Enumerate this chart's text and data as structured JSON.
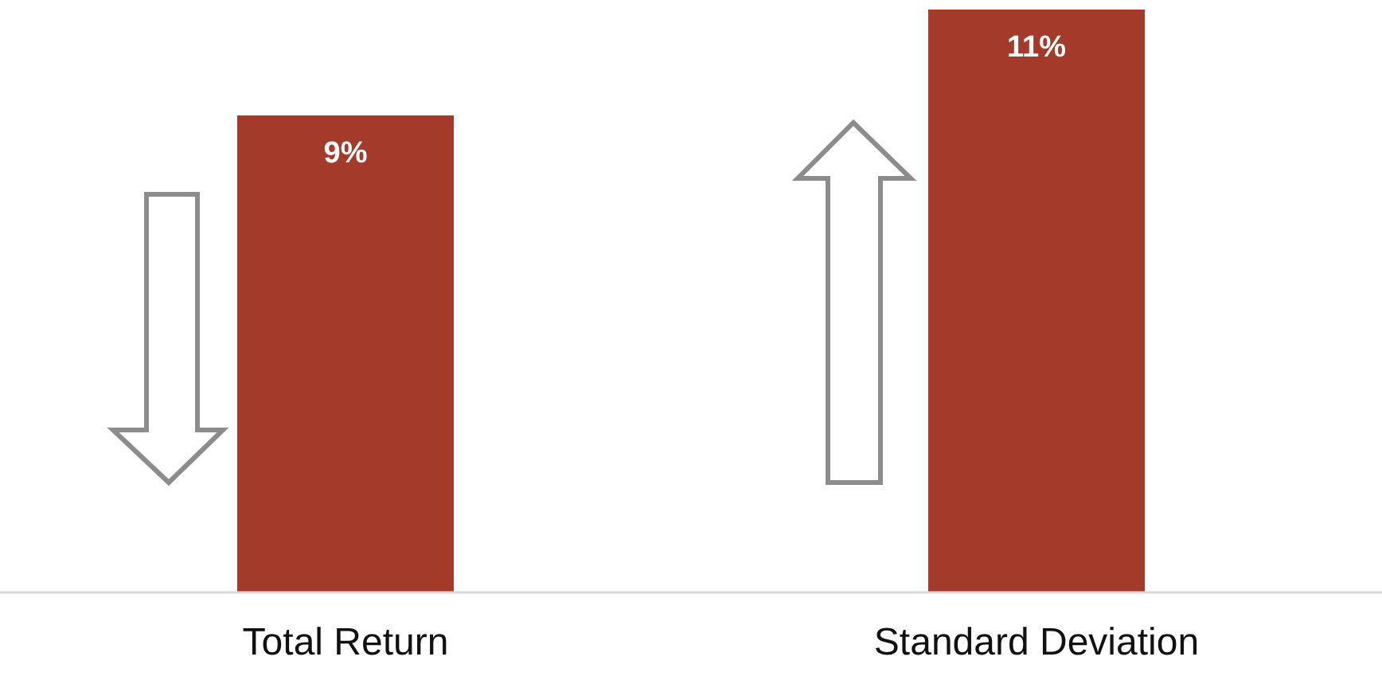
{
  "chart_data": {
    "type": "bar",
    "categories": [
      "Total Return",
      "Standard Deviation"
    ],
    "values": [
      9,
      11
    ],
    "color": "#a33a2a",
    "value_labels": [
      "9%",
      "11%"
    ],
    "grid": false,
    "legend": false
  }
}
